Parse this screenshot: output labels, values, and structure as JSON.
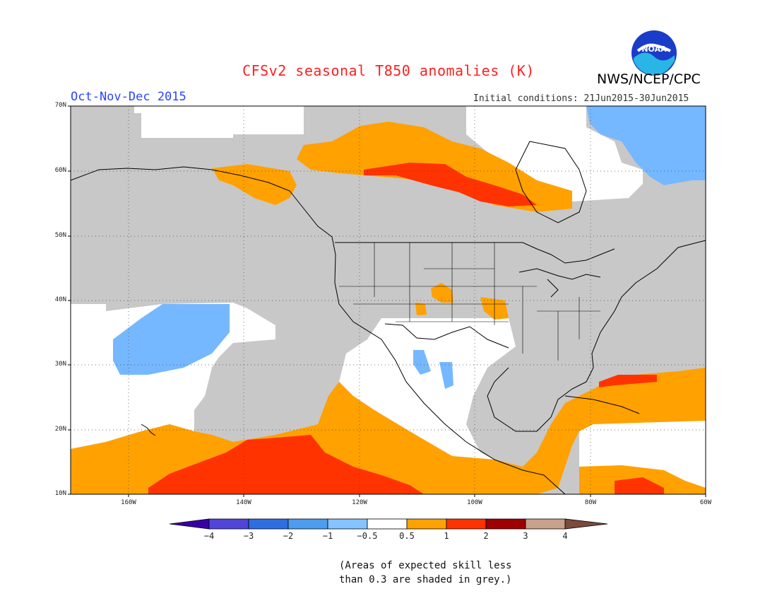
{
  "title": "CFSv2 seasonal T850 anomalies (K)",
  "agency": "NWS/NCEP/CPC",
  "logo_text": "NOAA",
  "season": "Oct-Nov-Dec 2015",
  "initial_conditions": "Initial conditions: 21Jun2015-30Jun2015",
  "lat_labels": [
    "70N",
    "60N",
    "50N",
    "40N",
    "30N",
    "20N",
    "10N"
  ],
  "lon_labels": [
    "160W",
    "140W",
    "120W",
    "100W",
    "80W",
    "60W"
  ],
  "colorbar": {
    "colors": [
      "#3a00a8",
      "#4f45d8",
      "#2f6ee0",
      "#4c9cf0",
      "#86c4ff",
      "#ffffff",
      "#ffa100",
      "#ff3300",
      "#a00000",
      "#c9a08c",
      "#7a4a3c"
    ],
    "labels": [
      "−4",
      "−3",
      "−2",
      "−1",
      "−0.5",
      "0.5",
      "1",
      "2",
      "3",
      "4"
    ]
  },
  "note_line1": "(Areas of expected skill less",
  "note_line2": "than 0.3 are shaded in grey.)",
  "colors": {
    "grey_low_skill": "#c8c8c8",
    "warm_1": "#ffa100",
    "warm_2": "#ff3300",
    "cool_1": "#76b8ff",
    "neutral": "#ffffff"
  }
}
